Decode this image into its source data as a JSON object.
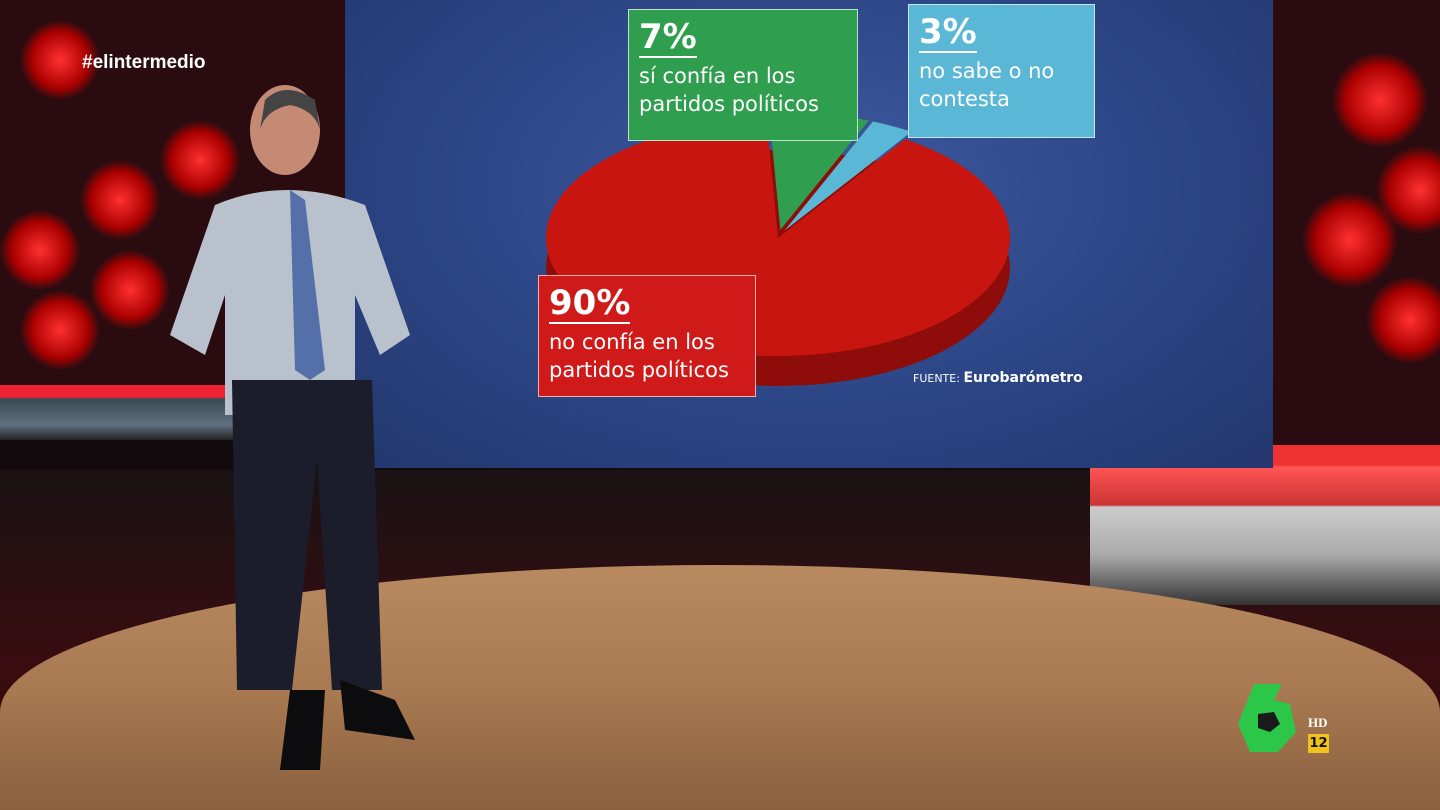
{
  "overlay": {
    "hashtag": "#elintermedio",
    "channel_logo": "laSexta",
    "hd_label": "HD",
    "age_rating": "12"
  },
  "chart_data": {
    "type": "pie",
    "title": "",
    "slices": [
      {
        "percent_label": "90%",
        "label": "no confía en los partidos políticos",
        "value": 90,
        "color": "#c8150f"
      },
      {
        "percent_label": "7%",
        "label": "sí confía en los partidos políticos",
        "value": 7,
        "color": "#2f9e4e"
      },
      {
        "percent_label": "3%",
        "label": "no sabe o no contesta",
        "value": 3,
        "color": "#5ab8d6"
      }
    ],
    "source_prefix": "FUENTE:",
    "source": "Eurobarómetro"
  }
}
